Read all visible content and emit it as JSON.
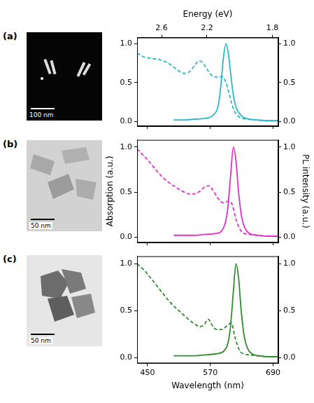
{
  "images": [
    {
      "panel": "(a)",
      "scale_bar": "100 nm"
    },
    {
      "panel": "(b)",
      "scale_bar": "50 nm"
    },
    {
      "panel": "(c)",
      "scale_bar": "50 nm"
    }
  ],
  "chart_data": [
    {
      "type": "line",
      "x2label": "Energy (eV)",
      "x2ticks": [
        2.6,
        2.2,
        1.8
      ],
      "xlim": [
        430,
        700
      ],
      "xticks": [
        450,
        570,
        690
      ],
      "tick_labels": "y",
      "grid": false,
      "ylim": [
        -0.06,
        1.08
      ],
      "yticks": [
        {
          "value": 0,
          "label": "0.0"
        },
        {
          "value": 0.5,
          "label": "0.5"
        },
        {
          "value": 1,
          "label": "1.0"
        }
      ],
      "y2lim": [
        -0.06,
        1.08
      ],
      "y2ticks": [
        {
          "value": 0,
          "label": "0.0"
        },
        {
          "value": 0.5,
          "label": "0.5"
        },
        {
          "value": 1,
          "label": "1.0"
        }
      ],
      "series": [
        {
          "axis": "y",
          "color": "#27b8c8",
          "line_style": "dashed",
          "x": [
            430,
            440,
            450,
            460,
            470,
            480,
            490,
            500,
            510,
            520,
            530,
            540,
            548,
            555,
            565,
            575,
            585,
            592,
            600,
            607,
            615,
            625,
            640,
            660,
            680,
            700
          ],
          "values": [
            0.88,
            0.84,
            0.82,
            0.81,
            0.8,
            0.78,
            0.75,
            0.7,
            0.65,
            0.62,
            0.64,
            0.72,
            0.78,
            0.76,
            0.66,
            0.58,
            0.57,
            0.58,
            0.5,
            0.33,
            0.15,
            0.06,
            0.03,
            0.02,
            0.01,
            0.01
          ]
        },
        {
          "axis": "y2",
          "color": "#27b8c8",
          "line_style": "solid",
          "x": [
            500,
            520,
            540,
            560,
            575,
            585,
            590,
            595,
            600,
            605,
            610,
            615,
            620,
            630,
            645,
            660,
            680,
            700
          ],
          "values": [
            0.02,
            0.02,
            0.03,
            0.04,
            0.08,
            0.2,
            0.45,
            0.82,
            1.0,
            0.85,
            0.55,
            0.3,
            0.17,
            0.07,
            0.03,
            0.02,
            0.01,
            0.01
          ]
        }
      ]
    },
    {
      "type": "line",
      "ylabel": "Absorption (a.u.)",
      "y2label": "PL intensity (a.u.)",
      "xlim": [
        430,
        700
      ],
      "xticks": [
        450,
        570,
        690
      ],
      "tick_labels": "y",
      "grid": false,
      "ylim": [
        -0.06,
        1.08
      ],
      "yticks": [
        {
          "value": 0,
          "label": "0.0"
        },
        {
          "value": 0.5,
          "label": "0.5"
        },
        {
          "value": 1,
          "label": "1.0"
        }
      ],
      "y2lim": [
        -0.06,
        1.08
      ],
      "y2ticks": [
        {
          "value": 0,
          "label": "0.0"
        },
        {
          "value": 0.5,
          "label": "0.5"
        },
        {
          "value": 1,
          "label": "1.0"
        }
      ],
      "series": [
        {
          "axis": "y",
          "color": "#e030c8",
          "line_style": "dashed",
          "x": [
            430,
            440,
            450,
            460,
            470,
            480,
            490,
            500,
            510,
            520,
            530,
            540,
            550,
            560,
            568,
            575,
            585,
            595,
            605,
            612,
            620,
            630,
            645,
            660,
            680,
            700
          ],
          "values": [
            0.98,
            0.92,
            0.86,
            0.79,
            0.72,
            0.66,
            0.61,
            0.57,
            0.53,
            0.5,
            0.48,
            0.48,
            0.51,
            0.56,
            0.57,
            0.52,
            0.43,
            0.38,
            0.4,
            0.36,
            0.18,
            0.06,
            0.03,
            0.02,
            0.01,
            0.01
          ]
        },
        {
          "axis": "y2",
          "color": "#e030c8",
          "line_style": "solid",
          "x": [
            500,
            520,
            540,
            560,
            580,
            595,
            603,
            609,
            614,
            619,
            624,
            630,
            637,
            645,
            660,
            680,
            700
          ],
          "values": [
            0.02,
            0.02,
            0.02,
            0.03,
            0.04,
            0.1,
            0.3,
            0.7,
            1.0,
            0.85,
            0.5,
            0.22,
            0.09,
            0.04,
            0.02,
            0.01,
            0.01
          ]
        }
      ]
    },
    {
      "type": "line",
      "xlabel": "Wavelength (nm)",
      "xlim": [
        430,
        700
      ],
      "xticks": [
        450,
        570,
        690
      ],
      "grid": false,
      "ylim": [
        -0.06,
        1.08
      ],
      "yticks": [
        {
          "value": 0,
          "label": "0.0"
        },
        {
          "value": 0.5,
          "label": "0.5"
        },
        {
          "value": 1,
          "label": "1.0"
        }
      ],
      "y2lim": [
        -0.06,
        1.08
      ],
      "y2ticks": [
        {
          "value": 0,
          "label": "0.0"
        },
        {
          "value": 0.5,
          "label": "0.5"
        },
        {
          "value": 1,
          "label": "1.0"
        }
      ],
      "series": [
        {
          "axis": "y",
          "color": "#2e8b2e",
          "line_style": "dashed",
          "x": [
            430,
            440,
            450,
            460,
            470,
            480,
            490,
            500,
            510,
            520,
            530,
            540,
            550,
            558,
            566,
            573,
            582,
            592,
            602,
            610,
            618,
            628,
            645,
            660,
            680,
            700
          ],
          "values": [
            1.0,
            0.95,
            0.89,
            0.82,
            0.75,
            0.68,
            0.61,
            0.55,
            0.5,
            0.45,
            0.4,
            0.36,
            0.33,
            0.35,
            0.41,
            0.35,
            0.3,
            0.3,
            0.34,
            0.37,
            0.2,
            0.06,
            0.03,
            0.02,
            0.01,
            0.01
          ]
        },
        {
          "axis": "y2",
          "color": "#2e8b2e",
          "line_style": "solid",
          "x": [
            500,
            520,
            540,
            560,
            580,
            600,
            608,
            614,
            619,
            624,
            629,
            635,
            642,
            650,
            665,
            680,
            700
          ],
          "values": [
            0.02,
            0.02,
            0.02,
            0.03,
            0.04,
            0.1,
            0.3,
            0.7,
            1.0,
            0.85,
            0.5,
            0.22,
            0.09,
            0.04,
            0.02,
            0.01,
            0.01
          ]
        }
      ]
    }
  ]
}
